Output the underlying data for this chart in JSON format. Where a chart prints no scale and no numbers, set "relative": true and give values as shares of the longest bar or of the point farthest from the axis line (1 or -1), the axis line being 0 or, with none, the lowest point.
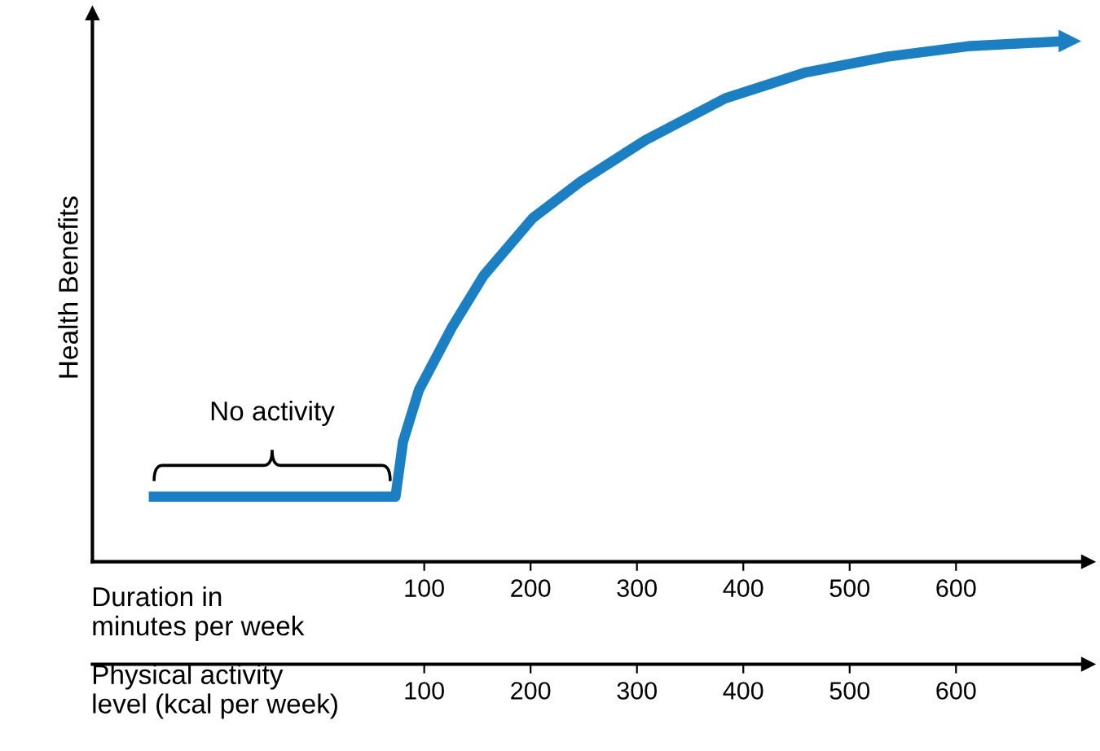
{
  "chart_data": {
    "type": "line",
    "relative": true,
    "ylabel": "Health Benefits",
    "xlabel": "Duration in\nminutes per week",
    "x2label": "Physical activity\nlevel (kcal per week)",
    "xlim": [
      -212,
      724
    ],
    "xticks": [
      100,
      200,
      300,
      400,
      500,
      600
    ],
    "x2lim": [
      -212,
      724
    ],
    "x2ticks": [
      100,
      200,
      300,
      400,
      500,
      600
    ],
    "x": [
      -159,
      73,
      80,
      95,
      126,
      156,
      202,
      247,
      308,
      383,
      459,
      535,
      611,
      702
    ],
    "series": [
      {
        "color": "#1b7fc4",
        "values": [
          0.125,
          0.125,
          0.23,
          0.33,
          0.45,
          0.55,
          0.66,
          0.73,
          0.81,
          0.89,
          0.94,
          0.97,
          0.99,
          1.0
        ]
      }
    ],
    "annotations": [
      "No activity"
    ],
    "grid": false,
    "legend": false,
    "marker": "none",
    "line_style": "solid"
  }
}
